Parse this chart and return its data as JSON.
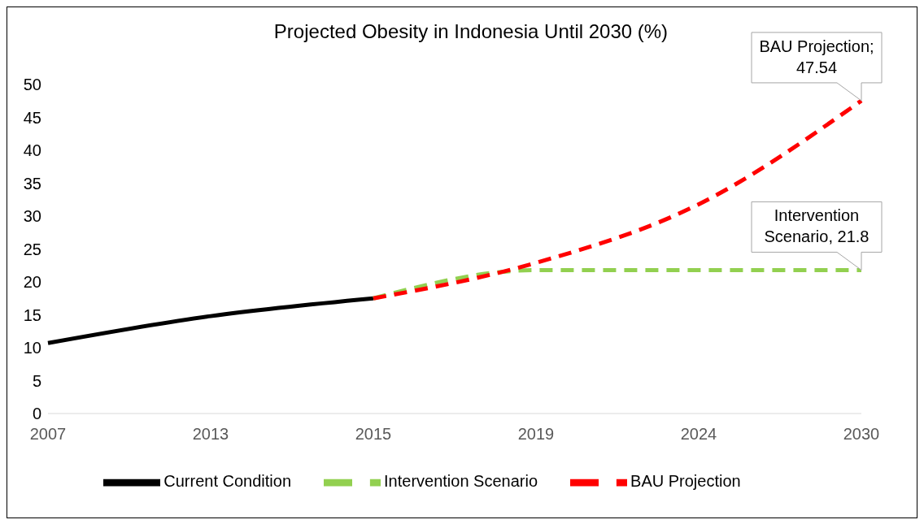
{
  "chart_data": {
    "type": "line",
    "title": "Projected Obesity in Indonesia Until 2030 (%)",
    "categories": [
      "2007",
      "2013",
      "2015",
      "2019",
      "2024",
      "2030"
    ],
    "series": [
      {
        "name": "Current Condition",
        "color": "#000000",
        "line_style": "solid",
        "values": [
          10.7,
          14.8,
          17.5,
          null,
          null,
          null
        ]
      },
      {
        "name": "Intervention Scenario",
        "color": "#92d050",
        "line_style": "dashed",
        "values": [
          null,
          null,
          17.5,
          21.8,
          21.8,
          21.8
        ]
      },
      {
        "name": "BAU Projection",
        "color": "#ff0000",
        "line_style": "dashed",
        "values": [
          null,
          null,
          17.5,
          22.9,
          31.8,
          47.54
        ]
      }
    ],
    "ylim": [
      0,
      50
    ],
    "yticks": [
      0,
      5,
      10,
      15,
      20,
      25,
      30,
      35,
      40,
      45,
      50
    ],
    "grid": false,
    "legend": "bottom",
    "marker": "none",
    "annotations": [
      {
        "text": "BAU Projection; 47.54",
        "x": "2030",
        "y": 47.54
      },
      {
        "text": "Intervention Scenario, 21.8",
        "x": "2030",
        "y": 21.8
      }
    ]
  }
}
